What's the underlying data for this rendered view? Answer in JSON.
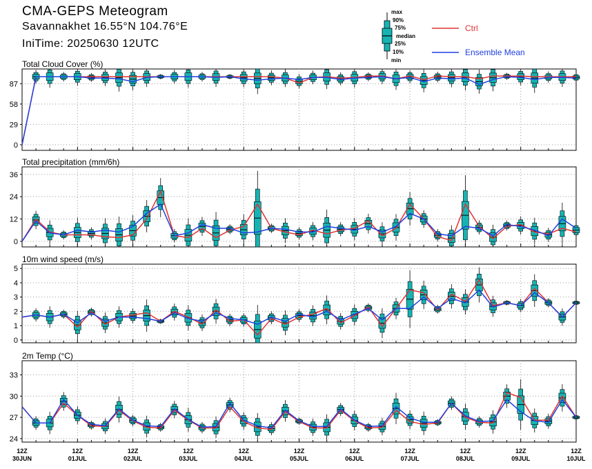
{
  "header": {
    "title": "CMA-GEPS Meteogram",
    "location": "Savannakhet 16.55°N 104.76°E",
    "init_time": "IniTime: 20250630 12UTC"
  },
  "legend": {
    "box_labels": [
      "max",
      "90%",
      "75%",
      "median",
      "25%",
      "10%",
      "min"
    ],
    "ctrl_label": "Ctrl",
    "mean_label": "Ensemble Mean",
    "ctrl_color": "#e03030",
    "mean_color": "#1f3fe0",
    "box_color": "#17b3b3"
  },
  "x_axis": {
    "labels": [
      {
        "top": "12Z",
        "bottom": "30JUN"
      },
      {
        "top": "12Z",
        "bottom": "01JUL"
      },
      {
        "top": "12Z",
        "bottom": "02JUL"
      },
      {
        "top": "12Z",
        "bottom": "03JUL"
      },
      {
        "top": "12Z",
        "bottom": "04JUL"
      },
      {
        "top": "12Z",
        "bottom": "05JUL"
      },
      {
        "top": "12Z",
        "bottom": "06JUL"
      },
      {
        "top": "12Z",
        "bottom": "07JUL"
      },
      {
        "top": "12Z",
        "bottom": "08JUL"
      },
      {
        "top": "12Z",
        "bottom": "09JUL"
      },
      {
        "top": "12Z",
        "bottom": "10JUL"
      }
    ]
  },
  "chart_data": [
    {
      "type": "line",
      "title": "Total Cloud Cover (%)",
      "x": "6-hourly steps from 12Z 30JUN to 12Z 10JUL (0-40)",
      "yticks": [
        0,
        29,
        58,
        87
      ],
      "ylim": [
        -8,
        108
      ],
      "grid": true,
      "boxes": true,
      "series": [
        {
          "name": "Ctrl",
          "values": [
            0,
            97,
            97,
            97,
            97,
            97,
            97,
            97,
            97,
            97,
            97,
            97,
            97,
            97,
            97,
            97,
            97,
            97,
            97,
            95,
            88,
            96,
            97,
            95,
            96,
            98,
            98,
            94,
            98,
            93,
            98,
            97,
            97,
            94,
            98,
            98,
            98,
            97,
            97,
            97,
            97
          ]
        },
        {
          "name": "Ensemble Mean",
          "values": [
            0,
            97,
            97,
            97,
            97,
            95,
            95,
            94,
            90,
            96,
            97,
            97,
            97,
            97,
            96,
            97,
            94,
            92,
            94,
            95,
            93,
            96,
            96,
            93,
            95,
            96,
            97,
            94,
            96,
            90,
            95,
            94,
            95,
            86,
            93,
            97,
            96,
            93,
            96,
            96,
            95
          ]
        }
      ]
    },
    {
      "type": "line",
      "title": "Total precipitation (mm/6h)",
      "x": "6-hourly steps from 12Z 30JUN to 12Z 10JUL (0-40)",
      "yticks": [
        0,
        12,
        24,
        36
      ],
      "ylim": [
        -3,
        40
      ],
      "grid": true,
      "boxes": true,
      "series": [
        {
          "name": "Ctrl",
          "values": [
            0,
            12,
            5,
            3.5,
            3.5,
            3.5,
            2.5,
            2,
            3.5,
            12,
            27,
            3,
            2,
            7,
            2,
            6,
            8,
            20,
            7,
            5,
            3.5,
            6,
            4,
            6,
            7,
            11,
            3,
            7,
            20,
            12,
            2.5,
            0.5,
            20,
            8,
            1.5,
            8,
            9,
            5,
            4,
            7,
            5
          ]
        },
        {
          "name": "Ensemble Mean",
          "values": [
            0,
            11,
            4.5,
            3.5,
            6,
            5,
            6,
            5,
            8,
            15,
            20,
            3,
            4.5,
            9,
            7,
            7,
            4.5,
            5,
            7,
            6.5,
            5,
            5,
            8,
            7,
            6,
            8,
            5,
            8,
            15,
            12,
            4,
            3,
            8,
            7,
            3,
            9,
            8,
            6,
            3,
            12,
            7
          ]
        }
      ]
    },
    {
      "type": "line",
      "title": "10m wind speed (m/s)",
      "x": "6-hourly steps from 12Z 30JUN to 12Z 10JUL (0-40)",
      "yticks": [
        0,
        1,
        2,
        3,
        4,
        5
      ],
      "ylim": [
        -0.2,
        5.3
      ],
      "grid": true,
      "boxes": true,
      "series": [
        {
          "name": "Ctrl",
          "values": [
            1.6,
            1.75,
            1.6,
            1.8,
            0.9,
            2,
            1.1,
            1.6,
            1.75,
            1.9,
            1.3,
            2,
            1.6,
            1.1,
            2.1,
            1.3,
            1.4,
            0.35,
            1.5,
            1.1,
            1.6,
            1.8,
            2.2,
            1.2,
            1.7,
            2.3,
            0.95,
            2.2,
            3.5,
            3.3,
            2.1,
            3.2,
            2.7,
            4.2,
            2.4,
            2.6,
            2.4,
            3.6,
            2.6,
            1.6,
            2.6
          ]
        },
        {
          "name": "Ensemble Mean",
          "values": [
            1.6,
            1.75,
            1.6,
            1.8,
            1.2,
            1.9,
            1.3,
            1.6,
            1.6,
            1.5,
            1.3,
            1.9,
            1.5,
            1.3,
            1.9,
            1.5,
            1.4,
            1.1,
            1.6,
            1.3,
            1.8,
            1.6,
            2,
            1.4,
            1.8,
            2.2,
            1.4,
            2.2,
            2.2,
            3,
            2.2,
            2.9,
            2.6,
            3.5,
            2.3,
            2.6,
            2.4,
            3.3,
            2.6,
            1.6,
            2.6
          ]
        }
      ]
    },
    {
      "type": "line",
      "title": "2m Temp (°C)",
      "x": "6-hourly steps from 12Z 30JUN to 12Z 10JUL (0-40)",
      "yticks": [
        24,
        27,
        30,
        33
      ],
      "ylim": [
        23.5,
        35
      ],
      "grid": true,
      "boxes": true,
      "series": [
        {
          "name": "Ctrl",
          "values": [
            28.5,
            26.2,
            26.2,
            29,
            27.3,
            25.8,
            25.7,
            28,
            26.5,
            25.6,
            25.5,
            28,
            26.6,
            25.5,
            25.5,
            28.5,
            26.4,
            25.5,
            25.3,
            27.8,
            26.4,
            25.5,
            25.5,
            28,
            26.5,
            25.5,
            25.6,
            28,
            26.4,
            26,
            26.2,
            29,
            27,
            26.3,
            26.2,
            30.5,
            29.8,
            26.6,
            26.6,
            30,
            27
          ]
        },
        {
          "name": "Ensemble Mean",
          "values": [
            28.5,
            26.2,
            26.2,
            29.5,
            27.3,
            26,
            25.8,
            28.2,
            26.6,
            25.8,
            25.7,
            28.2,
            26.7,
            25.6,
            25.7,
            29,
            26.6,
            25.8,
            25.5,
            28,
            26.5,
            25.7,
            25.7,
            28.2,
            26.6,
            25.7,
            25.8,
            28.5,
            26.9,
            26.3,
            26.3,
            29,
            27.2,
            26.4,
            26.5,
            29.5,
            27.8,
            26.5,
            26.3,
            29.5,
            27
          ]
        }
      ]
    }
  ]
}
